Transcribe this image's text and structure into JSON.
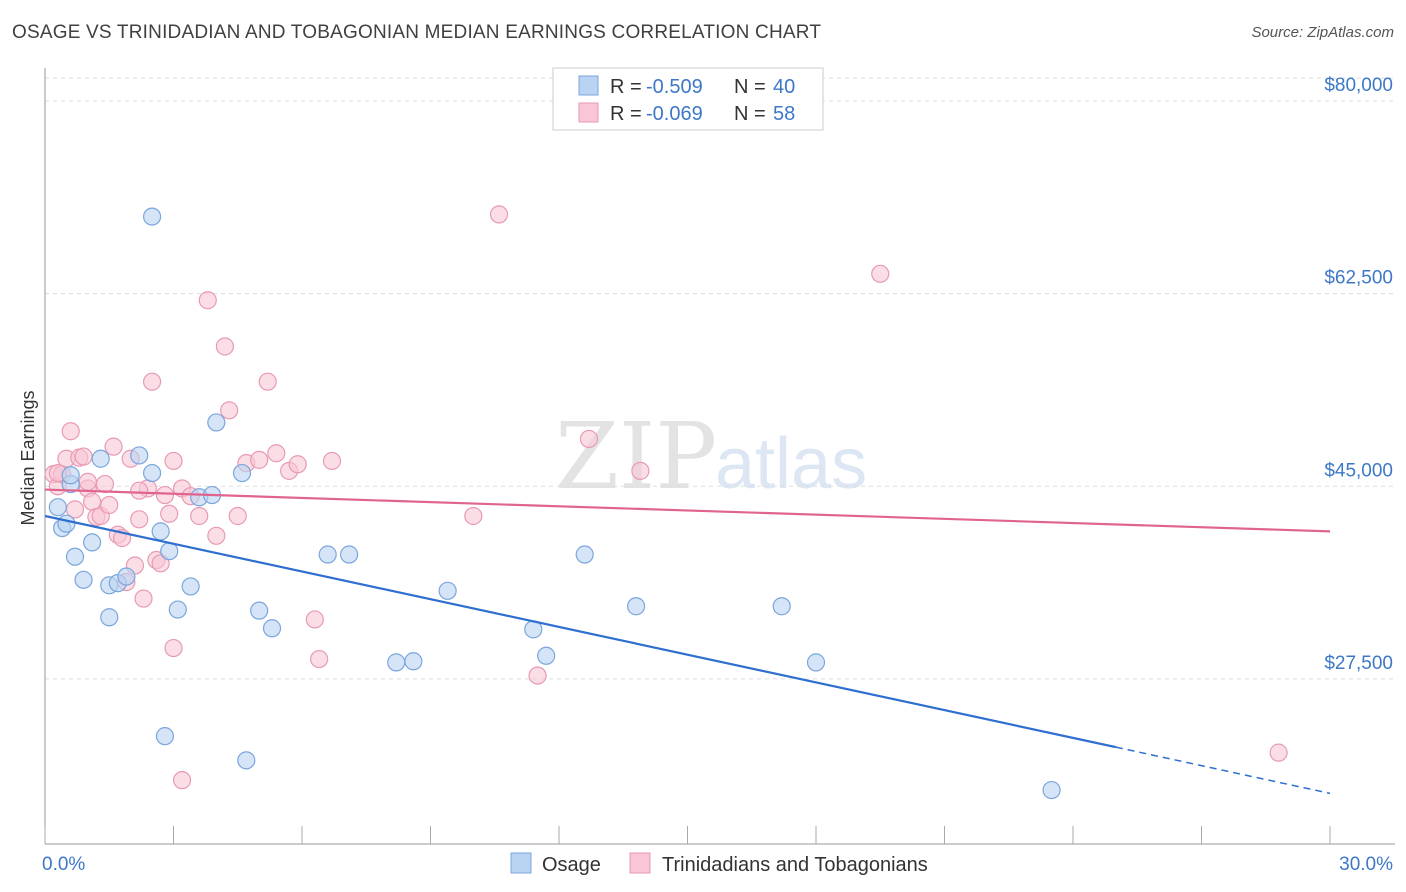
{
  "title": "OSAGE VS TRINIDADIAN AND TOBAGONIAN MEDIAN EARNINGS CORRELATION CHART",
  "source": "Source: ZipAtlas.com",
  "watermark": {
    "zip": "ZIP",
    "atlas": "atlas"
  },
  "colors": {
    "osage_fill": "#b9d3f2",
    "osage_stroke": "#7aa6dc",
    "osage_line": "#2e6fd0",
    "trini_fill": "#f8c6d6",
    "trini_stroke": "#e89ab3",
    "trini_line": "#e0648e",
    "tick": "#3d78c7",
    "grid": "#dddddd"
  },
  "legend": {
    "rows": [
      {
        "r_label": "R =",
        "r_value": "-0.509",
        "n_label": "N =",
        "n_value": "40"
      },
      {
        "r_label": "R =",
        "r_value": "-0.069",
        "n_label": "N =",
        "n_value": "58"
      }
    ]
  },
  "bottom_legend": [
    "Osage",
    "Trinidadians and Tobagonians"
  ],
  "chart_data": {
    "type": "scatter",
    "ylabel": "Median Earnings",
    "xlim": [
      0,
      30
    ],
    "ylim": [
      12500,
      83000
    ],
    "x_tick_labels": [
      "0.0%",
      "30.0%"
    ],
    "y_ticks": [
      {
        "value": 27500,
        "label": "$27,500"
      },
      {
        "value": 45000,
        "label": "$45,000"
      },
      {
        "value": 62500,
        "label": "$62,500"
      },
      {
        "value": 80000,
        "label": "$80,000"
      }
    ],
    "grid": true,
    "legend_position": "top-center",
    "series": [
      {
        "name": "Osage",
        "points": [
          [
            2.5,
            69500
          ],
          [
            4.0,
            50800
          ],
          [
            0.3,
            43100
          ],
          [
            0.4,
            41200
          ],
          [
            0.5,
            41600
          ],
          [
            0.6,
            45200
          ],
          [
            0.7,
            38600
          ],
          [
            0.9,
            36500
          ],
          [
            1.1,
            39900
          ],
          [
            1.3,
            47500
          ],
          [
            1.5,
            36000
          ],
          [
            1.7,
            36200
          ],
          [
            1.9,
            36800
          ],
          [
            2.2,
            47800
          ],
          [
            2.5,
            46200
          ],
          [
            2.7,
            40900
          ],
          [
            2.9,
            39100
          ],
          [
            3.1,
            33800
          ],
          [
            3.4,
            35900
          ],
          [
            3.6,
            44000
          ],
          [
            3.9,
            44200
          ],
          [
            4.6,
            46200
          ],
          [
            5.0,
            33700
          ],
          [
            5.3,
            32100
          ],
          [
            1.5,
            33100
          ],
          [
            2.8,
            22300
          ],
          [
            4.7,
            20100
          ],
          [
            6.6,
            38800
          ],
          [
            7.1,
            38800
          ],
          [
            8.2,
            29000
          ],
          [
            8.6,
            29100
          ],
          [
            9.4,
            35500
          ],
          [
            11.4,
            32000
          ],
          [
            11.7,
            29600
          ],
          [
            12.6,
            38800
          ],
          [
            13.8,
            34100
          ],
          [
            17.2,
            34100
          ],
          [
            18.0,
            29000
          ],
          [
            23.5,
            17400
          ],
          [
            0.6,
            46000
          ]
        ],
        "trend": {
          "x0": 0.0,
          "y0": 42300,
          "x1": 25.0,
          "y1": 21300,
          "dash_to_x": 30.0,
          "dash_to_y": 17100
        }
      },
      {
        "name": "Trinidadians and Tobagonians",
        "points": [
          [
            0.2,
            46100
          ],
          [
            0.3,
            45000
          ],
          [
            0.4,
            46100
          ],
          [
            0.5,
            47500
          ],
          [
            0.6,
            50000
          ],
          [
            0.7,
            42900
          ],
          [
            0.8,
            47600
          ],
          [
            0.9,
            47700
          ],
          [
            1.0,
            44800
          ],
          [
            1.1,
            43600
          ],
          [
            1.2,
            42200
          ],
          [
            1.3,
            42300
          ],
          [
            1.4,
            45200
          ],
          [
            1.5,
            43300
          ],
          [
            1.6,
            48600
          ],
          [
            1.7,
            40600
          ],
          [
            1.8,
            40300
          ],
          [
            1.9,
            36300
          ],
          [
            2.0,
            47500
          ],
          [
            2.1,
            37800
          ],
          [
            2.2,
            42000
          ],
          [
            2.3,
            34800
          ],
          [
            2.4,
            44800
          ],
          [
            2.5,
            54500
          ],
          [
            2.6,
            38300
          ],
          [
            2.7,
            38000
          ],
          [
            2.8,
            44200
          ],
          [
            2.9,
            42500
          ],
          [
            3.0,
            47300
          ],
          [
            3.2,
            44800
          ],
          [
            3.4,
            44100
          ],
          [
            3.6,
            42300
          ],
          [
            3.8,
            61900
          ],
          [
            4.0,
            40500
          ],
          [
            4.2,
            57700
          ],
          [
            4.3,
            51900
          ],
          [
            4.5,
            42300
          ],
          [
            4.7,
            47100
          ],
          [
            5.0,
            47400
          ],
          [
            5.2,
            54500
          ],
          [
            5.4,
            48000
          ],
          [
            5.7,
            46400
          ],
          [
            5.9,
            47000
          ],
          [
            6.3,
            32900
          ],
          [
            6.4,
            29300
          ],
          [
            6.7,
            47300
          ],
          [
            3.0,
            30300
          ],
          [
            3.2,
            18300
          ],
          [
            10.0,
            42300
          ],
          [
            10.6,
            69700
          ],
          [
            11.5,
            27800
          ],
          [
            12.7,
            49300
          ],
          [
            13.9,
            46400
          ],
          [
            19.5,
            64300
          ],
          [
            28.8,
            20800
          ],
          [
            1.0,
            45400
          ],
          [
            0.3,
            46200
          ],
          [
            2.2,
            44600
          ]
        ],
        "trend": {
          "x0": 0.0,
          "y0": 44700,
          "x1": 30.0,
          "y1": 40900
        }
      }
    ]
  }
}
